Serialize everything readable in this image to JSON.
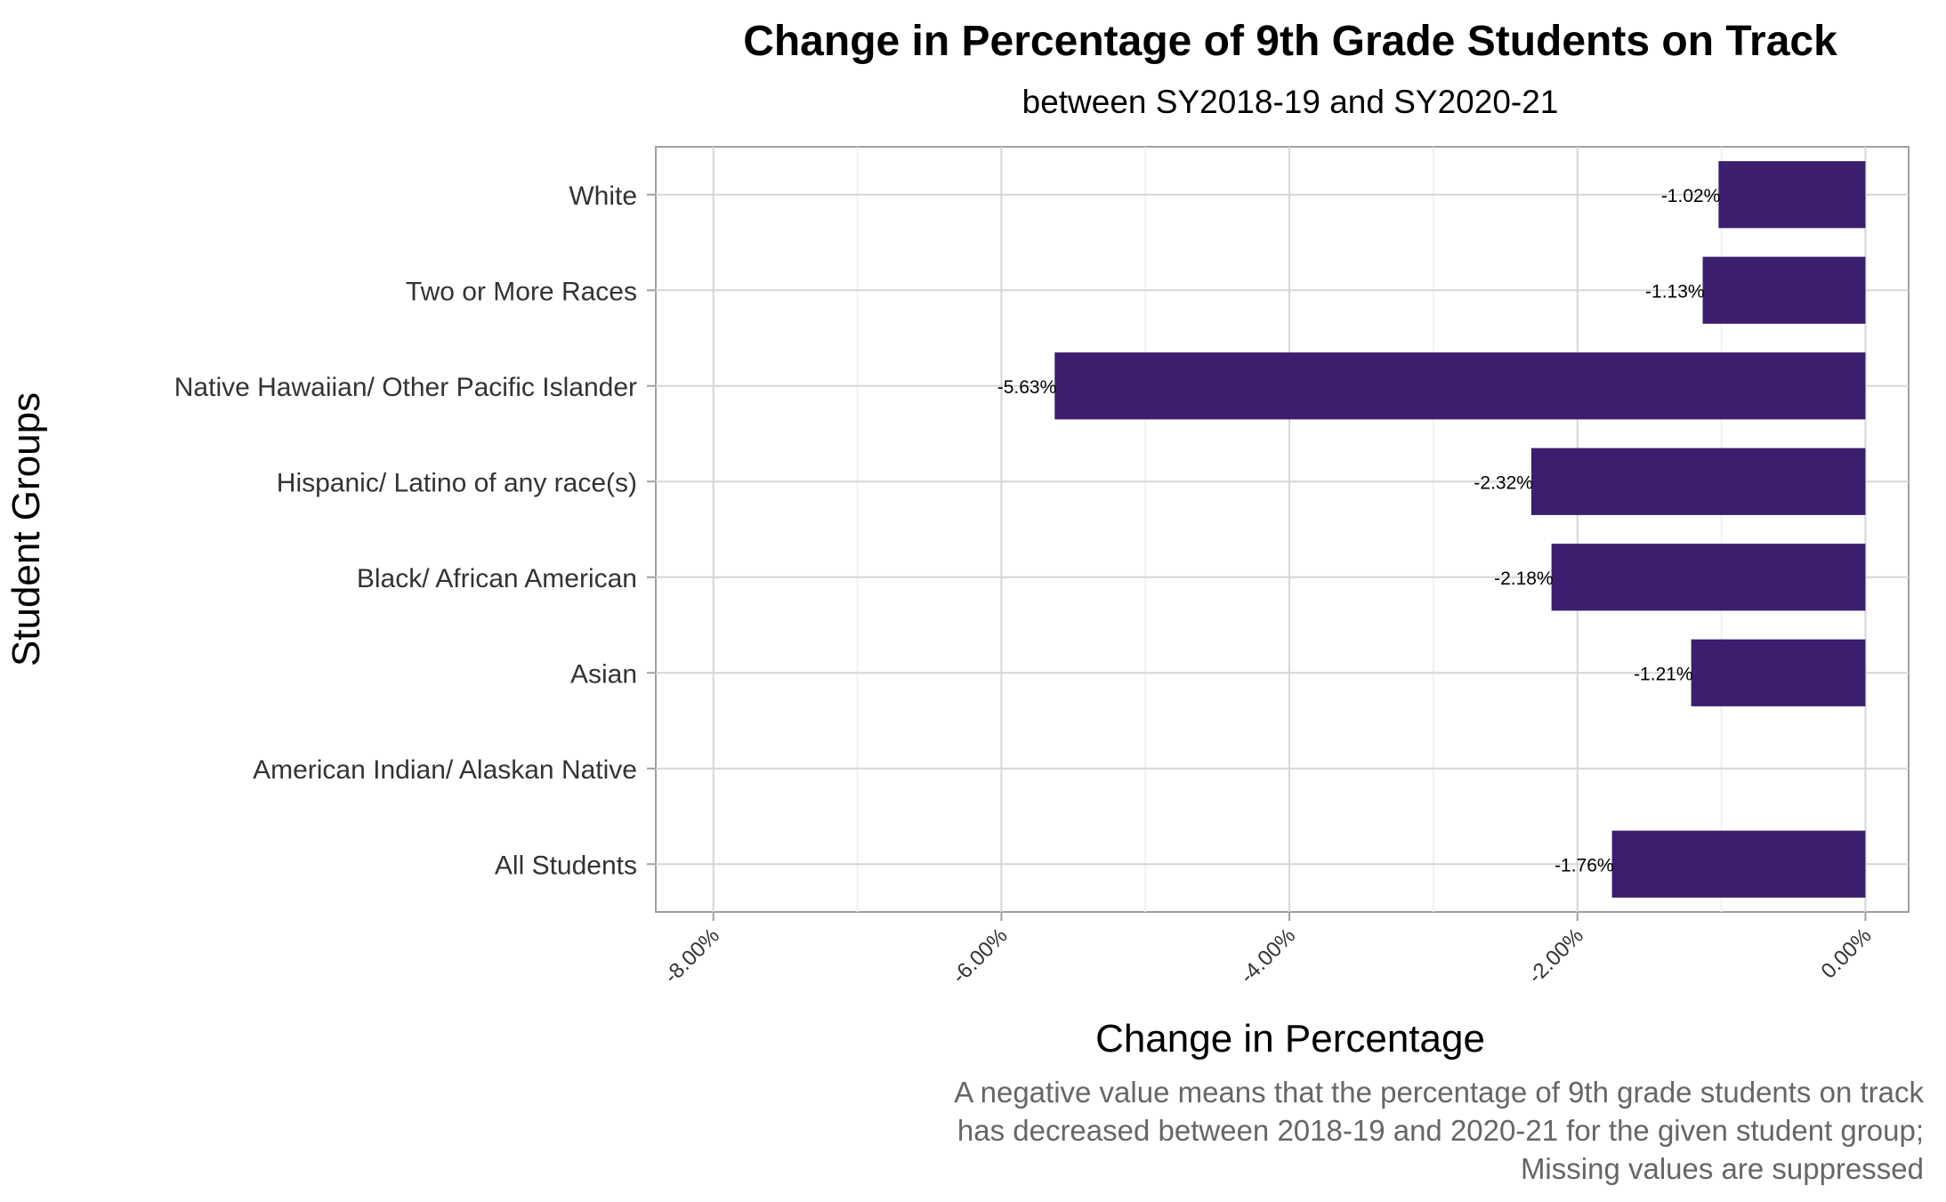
{
  "chart_data": {
    "type": "bar",
    "orientation": "horizontal",
    "title": "Change in Percentage of 9th Grade Students on Track",
    "subtitle": "between SY2018-19 and SY2020-21",
    "xlabel": "Change in Percentage",
    "ylabel": "Student Groups",
    "caption": [
      "A negative value means that the percentage of 9th grade students on track",
      "has decreased between 2018-19 and 2020-21 for the given student group;",
      "Missing values are suppressed"
    ],
    "categories": [
      "All Students",
      "American Indian/ Alaskan Native",
      "Asian",
      "Black/ African American",
      "Hispanic/ Latino of any race(s)",
      "Native Hawaiian/ Other Pacific Islander",
      "Two or More Races",
      "White"
    ],
    "values": [
      -1.76,
      null,
      -1.21,
      -2.18,
      -2.32,
      -5.63,
      -1.13,
      -1.02
    ],
    "data_labels": [
      "-1.76%",
      "",
      "-1.21%",
      "-2.18%",
      "-2.32%",
      "-5.63%",
      "-1.13%",
      "-1.02%"
    ],
    "xlim": [
      -8.4,
      0.3
    ],
    "xticks": [
      -8,
      -6,
      -4,
      -2,
      0
    ],
    "xtick_labels": [
      "-8.00%",
      "-6.00%",
      "-4.00%",
      "-2.00%",
      "0.00%"
    ],
    "bar_color": "#3b1e6e",
    "grid": true,
    "legend": "none"
  }
}
